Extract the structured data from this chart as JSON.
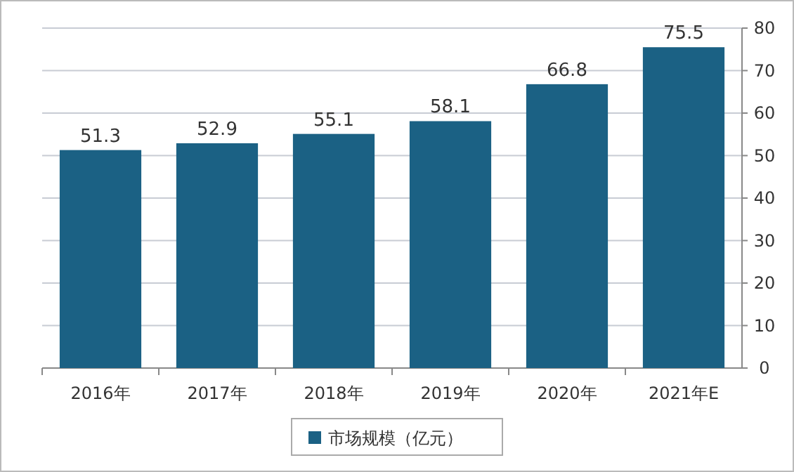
{
  "chart_data": {
    "type": "bar",
    "categories": [
      "2016年",
      "2017年",
      "2018年",
      "2019年",
      "2020年",
      "2021年E"
    ],
    "series": [
      {
        "name": "市场规模（亿元）",
        "color": "#1b6184",
        "values": [
          51.3,
          52.9,
          55.1,
          58.1,
          66.8,
          75.5
        ]
      }
    ],
    "ylim": [
      0,
      80
    ],
    "yticks": [
      0,
      10,
      20,
      30,
      40,
      50,
      60,
      70,
      80
    ],
    "grid": "y",
    "legend": "bottom",
    "data_labels": true
  }
}
